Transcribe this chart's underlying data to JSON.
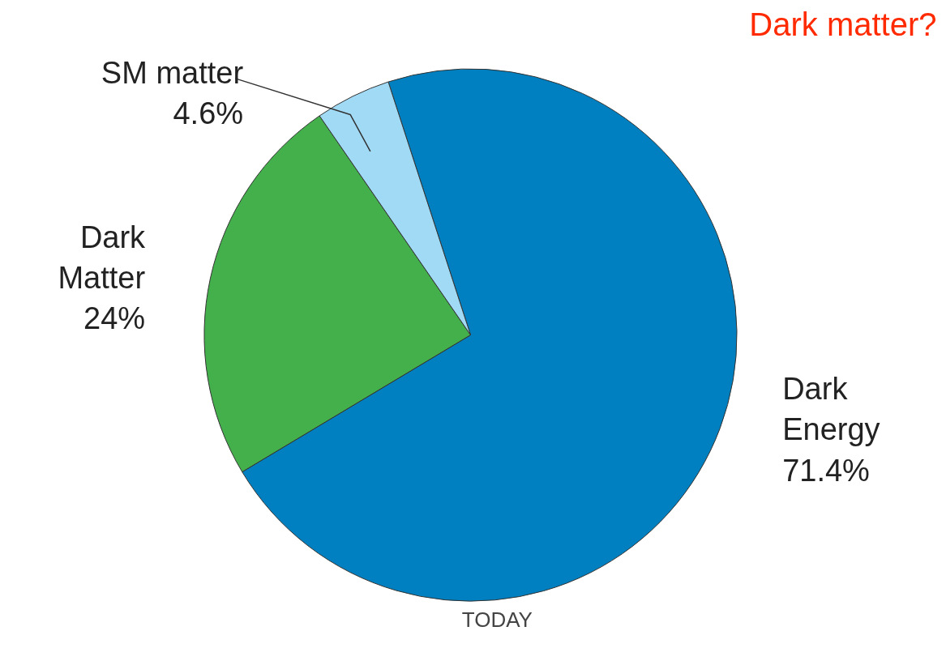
{
  "chart_data": {
    "type": "pie",
    "title": "Dark matter?",
    "categories": [
      "Dark Energy",
      "Dark Matter",
      "SM matter"
    ],
    "values": [
      71.4,
      24,
      4.6
    ],
    "colors": [
      "#0080c0",
      "#44b04c",
      "#a0daf5"
    ],
    "value_labels": [
      "71.4%",
      "24%",
      "4.6%"
    ],
    "annotations": [
      "TODAY"
    ]
  }
}
